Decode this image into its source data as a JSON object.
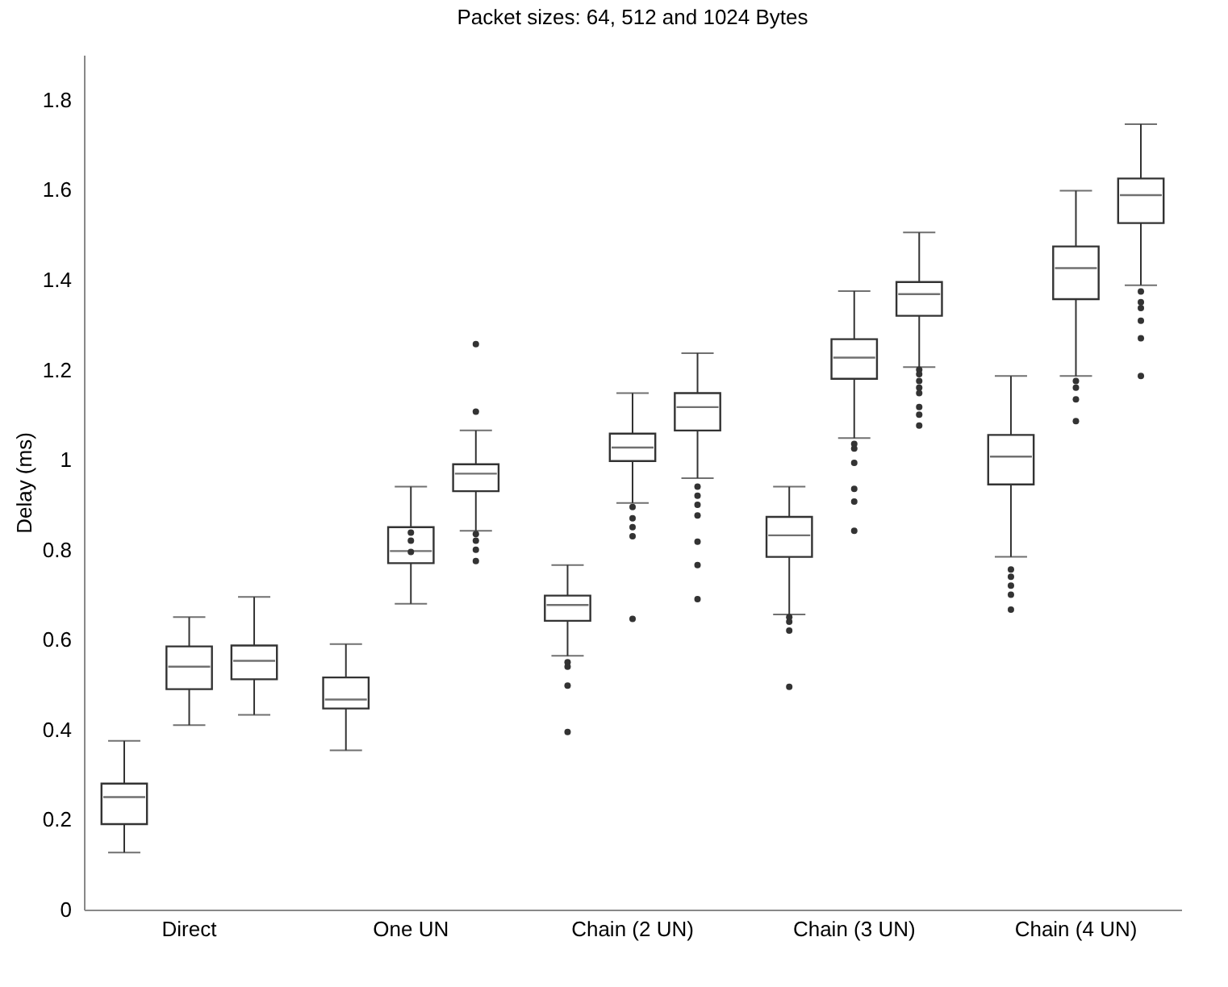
{
  "chart_data": {
    "type": "box",
    "title": "Packet sizes: 64, 512 and 1024 Bytes",
    "ylabel": "Delay (ms)",
    "categories": [
      "Direct",
      "One UN",
      "Chain (2 UN)",
      "Chain (3 UN)",
      "Chain (4 UN)"
    ],
    "ylim": [
      0,
      1.9
    ],
    "yticks": [
      0,
      0.2,
      0.4,
      0.6,
      0.8,
      1,
      1.2,
      1.4,
      1.6,
      1.8
    ],
    "grid": false,
    "legend": false,
    "series": [
      {
        "color": "#333333",
        "boxes": [
          {
            "low": 0.127,
            "q1": 0.19,
            "median": 0.25,
            "q3": 0.28,
            "high": 0.375
          },
          {
            "low": 0.354,
            "q1": 0.447,
            "median": 0.467,
            "q3": 0.516,
            "high": 0.59
          },
          {
            "low": 0.564,
            "q1": 0.642,
            "median": 0.677,
            "q3": 0.698,
            "high": 0.766,
            "outliers": [
              0.55,
              0.54,
              0.498,
              0.395
            ]
          },
          {
            "low": 0.656,
            "q1": 0.784,
            "median": 0.832,
            "q3": 0.873,
            "high": 0.94,
            "outliers": [
              0.65,
              0.64,
              0.62,
              0.495
            ]
          },
          {
            "low": 0.784,
            "q1": 0.945,
            "median": 1.007,
            "q3": 1.055,
            "high": 1.186,
            "outliers": [
              0.756,
              0.74,
              0.72,
              0.7,
              0.667
            ]
          }
        ]
      },
      {
        "color": "#333333",
        "boxes": [
          {
            "low": 0.41,
            "q1": 0.49,
            "median": 0.54,
            "q3": 0.585,
            "high": 0.65
          },
          {
            "low": 0.68,
            "q1": 0.77,
            "median": 0.797,
            "q3": 0.85,
            "high": 0.94,
            "outliers": [
              0.838,
              0.82,
              0.795
            ]
          },
          {
            "low": 0.904,
            "q1": 0.997,
            "median": 1.027,
            "q3": 1.058,
            "high": 1.148,
            "outliers": [
              0.895,
              0.87,
              0.85,
              0.83,
              0.646
            ]
          },
          {
            "low": 1.048,
            "q1": 1.18,
            "median": 1.227,
            "q3": 1.268,
            "high": 1.375,
            "outliers": [
              1.035,
              1.025,
              0.993,
              0.935,
              0.907,
              0.842
            ]
          },
          {
            "low": 1.186,
            "q1": 1.357,
            "median": 1.426,
            "q3": 1.474,
            "high": 1.598,
            "outliers": [
              1.175,
              1.16,
              1.134,
              1.086
            ]
          }
        ]
      },
      {
        "color": "#333333",
        "boxes": [
          {
            "low": 0.433,
            "q1": 0.512,
            "median": 0.553,
            "q3": 0.587,
            "high": 0.695
          },
          {
            "low": 0.842,
            "q1": 0.93,
            "median": 0.969,
            "q3": 0.99,
            "high": 1.065,
            "outliers": [
              1.257,
              1.107,
              0.835,
              0.82,
              0.8,
              0.775
            ]
          },
          {
            "low": 0.959,
            "q1": 1.065,
            "median": 1.117,
            "q3": 1.148,
            "high": 1.237,
            "outliers": [
              0.94,
              0.92,
              0.9,
              0.876,
              0.818,
              0.766,
              0.69
            ]
          },
          {
            "low": 1.206,
            "q1": 1.32,
            "median": 1.368,
            "q3": 1.395,
            "high": 1.505,
            "outliers": [
              1.2,
              1.19,
              1.175,
              1.16,
              1.148,
              1.117,
              1.1,
              1.076
            ]
          },
          {
            "low": 1.388,
            "q1": 1.526,
            "median": 1.588,
            "q3": 1.625,
            "high": 1.746,
            "outliers": [
              1.374,
              1.35,
              1.337,
              1.309,
              1.27,
              1.186
            ]
          }
        ]
      }
    ]
  }
}
